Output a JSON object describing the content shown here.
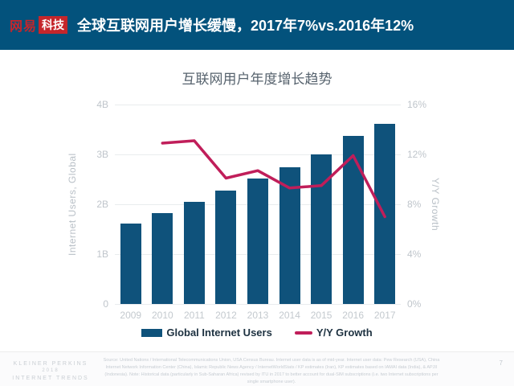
{
  "header": {
    "logo_wangyi": "网易",
    "logo_keji": "科技",
    "title": "全球互联网用户增长缓慢，2017年7%vs.2016年12%"
  },
  "chart": {
    "title": "互联网用户年度增长趋势",
    "left_axis_label": "Internet Users, Global",
    "right_axis_label": "Y/Y Growth",
    "left_ticks": [
      "0",
      "1B",
      "2B",
      "3B",
      "4B"
    ],
    "right_ticks": [
      "0%",
      "4%",
      "8%",
      "12%",
      "16%"
    ],
    "legend": [
      {
        "label": "Global Internet Users",
        "type": "bar",
        "color": "#0f527b"
      },
      {
        "label": "Y/Y Growth",
        "type": "line",
        "color": "#c01e5a"
      }
    ]
  },
  "chart_data": {
    "type": "bar",
    "combo": "bar+line",
    "title": "互联网用户年度增长趋势",
    "categories": [
      "2009",
      "2010",
      "2011",
      "2012",
      "2013",
      "2014",
      "2015",
      "2016",
      "2017"
    ],
    "series": [
      {
        "name": "Global Internet Users",
        "type": "bar",
        "axis": "left",
        "unit": "billions",
        "values": [
          1.61,
          1.82,
          2.05,
          2.27,
          2.52,
          2.75,
          3.0,
          3.37,
          3.61
        ]
      },
      {
        "name": "Y/Y Growth",
        "type": "line",
        "axis": "right",
        "unit": "%",
        "values": [
          null,
          12.9,
          13.1,
          10.1,
          10.7,
          9.3,
          9.5,
          11.9,
          7.0
        ]
      }
    ],
    "left_axis": {
      "label": "Internet Users, Global",
      "range": [
        0,
        4
      ],
      "tick_step": 1,
      "tick_suffix": "B"
    },
    "right_axis": {
      "label": "Y/Y Growth",
      "range": [
        0,
        16
      ],
      "tick_step": 4,
      "tick_suffix": "%"
    },
    "grid": true,
    "legend_position": "bottom"
  },
  "colors": {
    "header_bg": "#03527c",
    "logo_red": "#c5262b",
    "bar": "#0f527b",
    "line": "#c01e5a",
    "tick_gray": "#bfc5cb",
    "legend_text": "#1d3140"
  },
  "footer": {
    "source_text": "Source: United Nations / International Telecommunications Union, USA Census Bureau. Internet user data is as of mid-year. Internet user data: Pew Research (USA), China Internet Network Information Center (China), Islamic Republic News Agency / InternetWorldStats / KP estimates (Iran), KP estimates based on IAMAI data (India), & APJII (Indonesia). Note: Historical data (particularly in Sub-Saharan Africa) revised by ITU in 2017 to better account for dual-SIM subscriptions (i.e. two Internet subscriptions per single smartphone user).",
    "branding": [
      "KLEINER PERKINS",
      "2018",
      "INTERNET TRENDS"
    ],
    "page_number": "7"
  }
}
